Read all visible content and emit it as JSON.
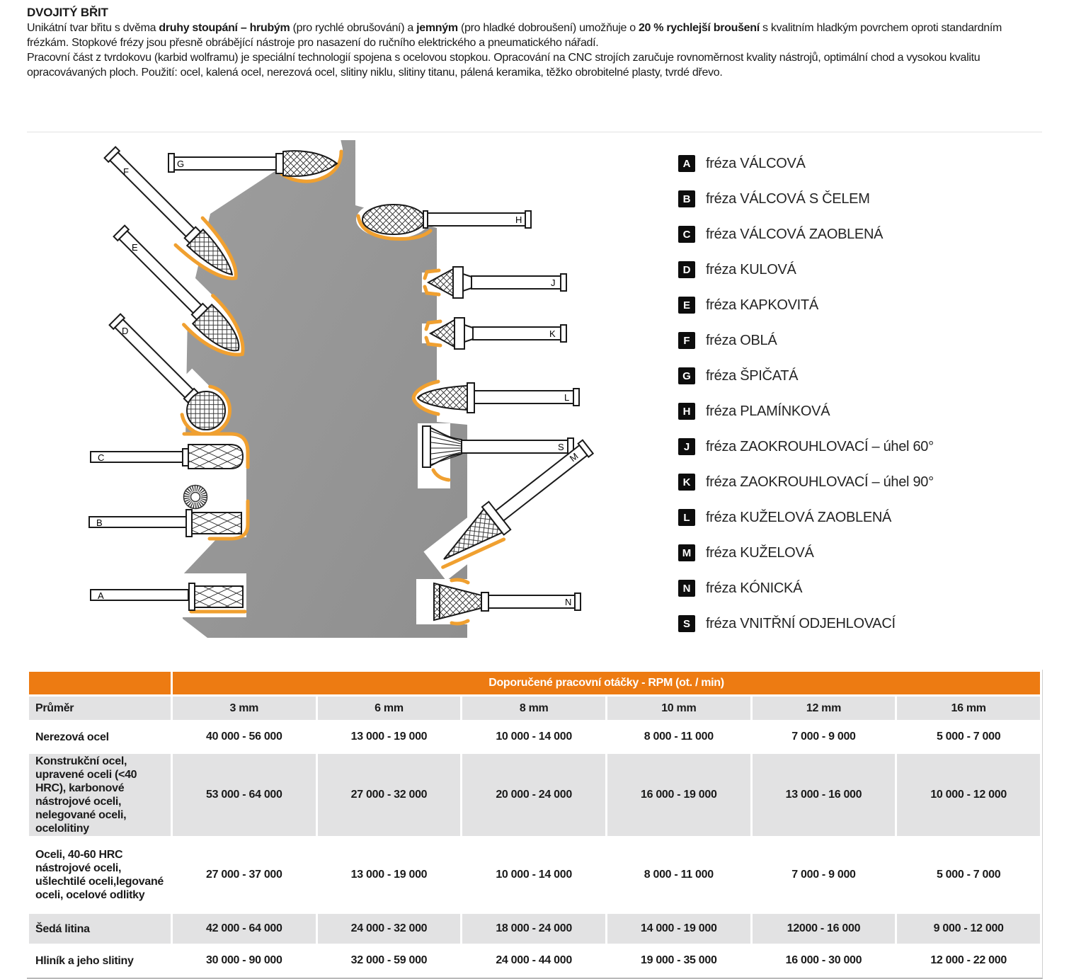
{
  "intro": {
    "title": "DVOJITÝ BŘIT",
    "para1": [
      {
        "t": "Unikátní tvar břitu s dvěma ",
        "b": false
      },
      {
        "t": "druhy stoupání – hrubým",
        "b": true
      },
      {
        "t": " (pro rychlé obrušování) a ",
        "b": false
      },
      {
        "t": "jemným",
        "b": true
      },
      {
        "t": " (pro hladké dobroušení) umožňuje o ",
        "b": false
      },
      {
        "t": "20 % rychlejší broušení",
        "b": true
      },
      {
        "t": " s kvalitním hladkým povrchem oproti standardním frézkám. Stopkové frézy jsou přesně obrábějící nástroje pro nasazení do ručního elektrického a pneumatického nářadí.",
        "b": false
      }
    ],
    "para2": [
      {
        "t": "Pracovní část z tvrdokovu (karbid wolframu) je speciální technologií spojena s ocelovou stopkou. Opracování na CNC strojích zaručuje rovnoměrnost kvality nástrojů, optimální chod a vysokou kvalitu opracovávaných ploch. Použití: ocel, kalená ocel, nerezová ocel, slitiny niklu, slitiny titanu, pálená keramika, těžko obrobitelné plasty, tvrdé dřevo.",
        "b": false
      }
    ]
  },
  "legend": {
    "items": [
      {
        "key": "A",
        "label": "fréza VÁLCOVÁ"
      },
      {
        "key": "B",
        "label": "fréza VÁLCOVÁ S ČELEM"
      },
      {
        "key": "C",
        "label": "fréza VÁLCOVÁ ZAOBLENÁ"
      },
      {
        "key": "D",
        "label": "fréza KULOVÁ"
      },
      {
        "key": "E",
        "label": "fréza KAPKOVITÁ"
      },
      {
        "key": "F",
        "label": "fréza OBLÁ"
      },
      {
        "key": "G",
        "label": "fréza ŠPIČATÁ"
      },
      {
        "key": "H",
        "label": "fréza PLAMÍNKOVÁ"
      },
      {
        "key": "J",
        "label": "fréza ZAOKROUHLOVACÍ – úhel 60°"
      },
      {
        "key": "K",
        "label": "fréza ZAOKROUHLOVACÍ – úhel 90°"
      },
      {
        "key": "L",
        "label": "fréza KUŽELOVÁ ZAOBLENÁ"
      },
      {
        "key": "M",
        "label": "fréza KUŽELOVÁ"
      },
      {
        "key": "N",
        "label": "fréza KÓNICKÁ"
      },
      {
        "key": "S",
        "label": "fréza VNITŘNÍ ODJEHLOVACÍ"
      }
    ]
  },
  "table": {
    "title": "Doporučené pracovní otáčky - RPM (ot. / min)",
    "col_headers": [
      "Průměr",
      "3 mm",
      "6 mm",
      "8 mm",
      "10 mm",
      "12 mm",
      "16 mm"
    ],
    "rows": [
      {
        "label": "Nerezová ocel",
        "values": [
          "40 000 - 56 000",
          "13 000 - 19 000",
          "10 000 - 14 000",
          "8 000 - 11 000",
          "7 000 - 9 000",
          "5 000 - 7 000"
        ]
      },
      {
        "label": "Konstrukční ocel, upravené oceli (<40 HRC), karbonové nástrojové oceli, nelegované oceli, ocelolitiny",
        "values": [
          "53 000 - 64 000",
          "27 000 - 32 000",
          "20 000 - 24 000",
          "16 000 - 19 000",
          "13 000 - 16 000",
          "10 000 - 12 000"
        ]
      },
      {
        "label": "Oceli, 40-60 HRC nástrojové oceli, ušlechtilé oceli,legované oceli, ocelové odlitky",
        "values": [
          "27 000 - 37 000",
          "13 000 - 19 000",
          "10 000 - 14 000",
          "8 000 - 11 000",
          "7 000 - 9 000",
          "5 000 - 7 000"
        ]
      },
      {
        "label": "Šedá litina",
        "values": [
          "42 000 - 64 000",
          "24 000 - 32 000",
          "18 000 - 24 000",
          "14 000 - 19 000",
          "12000 - 16 000",
          "9 000 - 12 000"
        ]
      },
      {
        "label": "Hliník a jeho slitiny",
        "values": [
          "30 000 - 90 000",
          "32 000 - 59 000",
          "24 000 - 44 000",
          "19 000 - 35 000",
          "16 000 - 30 000",
          "12 000 - 22 000"
        ]
      }
    ]
  },
  "colors": {
    "accent_orange": "#ED7B12",
    "arc_orange": "#F0A030",
    "cell_gray": "#E2E2E3",
    "silhouette_gray": "#979797"
  }
}
